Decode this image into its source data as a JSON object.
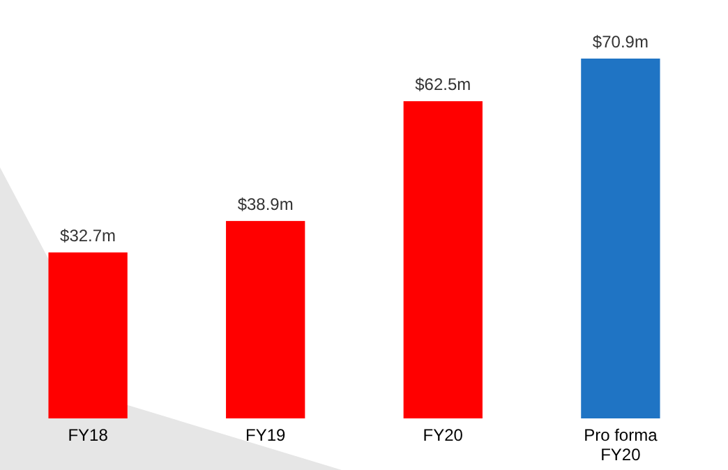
{
  "chart_data": {
    "type": "bar",
    "categories": [
      "FY18",
      "FY19",
      "FY20",
      "Pro forma FY20"
    ],
    "values": [
      32.7,
      38.9,
      62.5,
      70.9
    ],
    "value_labels": [
      "$32.7m",
      "$38.9m",
      "$62.5m",
      "$70.9m"
    ],
    "colors": [
      "#ff0000",
      "#ff0000",
      "#ff0000",
      "#1f74c4"
    ],
    "relative": false
  }
}
